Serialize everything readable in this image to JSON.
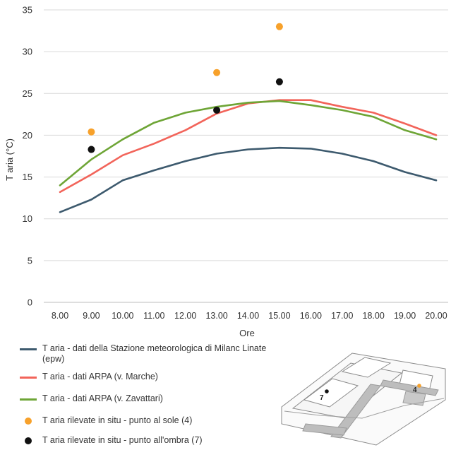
{
  "chart_data": {
    "type": "line",
    "ylabel": "T aria (°C)",
    "xlabel": "Ore",
    "ylim": [
      0,
      35
    ],
    "yticks": [
      0,
      5,
      10,
      15,
      20,
      25,
      30,
      35
    ],
    "categories": [
      "8.00",
      "9.00",
      "10.00",
      "11.00",
      "12.00",
      "13.00",
      "14.00",
      "15.00",
      "16.00",
      "17.00",
      "18.00",
      "19.00",
      "20.00"
    ],
    "grid": "horizontal",
    "legend_position": "bottom-left",
    "series": [
      {
        "name": "T aria - dati della Stazione meteorologica di Milanc Linate (epw)",
        "kind": "line",
        "color": "#3d5a6e",
        "values": [
          10.8,
          12.3,
          14.6,
          15.8,
          16.9,
          17.8,
          18.3,
          18.5,
          18.4,
          17.8,
          16.9,
          15.6,
          14.6
        ]
      },
      {
        "name": "T aria - dati ARPA (v. Marche)",
        "kind": "line",
        "color": "#f2645a",
        "values": [
          13.2,
          15.3,
          17.6,
          19.0,
          20.6,
          22.6,
          23.8,
          24.2,
          24.2,
          23.4,
          22.7,
          21.4,
          20.0
        ]
      },
      {
        "name": "T aria - dati ARPA (v. Zavattari)",
        "kind": "line",
        "color": "#6ea536",
        "values": [
          14.0,
          17.1,
          19.5,
          21.5,
          22.7,
          23.4,
          23.9,
          24.1,
          23.6,
          23.0,
          22.2,
          20.6,
          19.5
        ]
      },
      {
        "name": "T aria rilevate in situ - punto al sole (4)",
        "kind": "points",
        "color": "#f7a12b",
        "points": [
          {
            "x": "9.00",
            "y": 20.4
          },
          {
            "x": "13.00",
            "y": 27.5
          },
          {
            "x": "15.00",
            "y": 33.0
          }
        ]
      },
      {
        "name": "T aria rilevate in situ - punto all'ombra (7)",
        "kind": "points",
        "color": "#111111",
        "points": [
          {
            "x": "9.00",
            "y": 18.3
          },
          {
            "x": "13.00",
            "y": 23.0
          },
          {
            "x": "15.00",
            "y": 26.4
          }
        ]
      }
    ]
  },
  "legend": {
    "items": [
      {
        "label": "T aria - dati della Stazione meteorologica di Milanc Linate (epw)",
        "color": "#3d5a6e",
        "marker": "line"
      },
      {
        "label": "T aria - dati ARPA (v. Marche)",
        "color": "#f2645a",
        "marker": "line"
      },
      {
        "label": "T aria - dati ARPA (v. Zavattari)",
        "color": "#6ea536",
        "marker": "line"
      },
      {
        "label": "T aria rilevate in situ - punto al sole (4)",
        "color": "#f7a12b",
        "marker": "dot"
      },
      {
        "label": "T aria rilevate in situ - punto all'ombra (7)",
        "color": "#111111",
        "marker": "dot"
      }
    ]
  },
  "inset_map": {
    "label_shade": "7",
    "label_sun": "4"
  }
}
